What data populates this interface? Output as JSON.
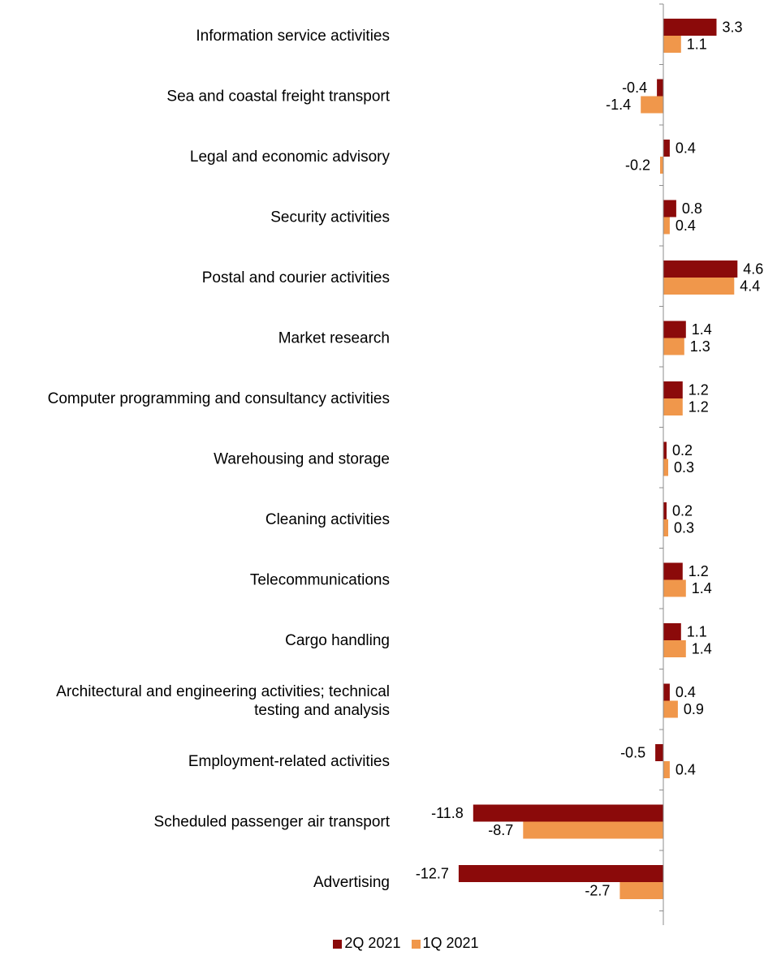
{
  "chart_data": {
    "type": "bar",
    "orientation": "horizontal",
    "categories": [
      "Information service activities",
      "Sea and coastal freight transport",
      "Legal and economic advisory",
      "Security activities",
      "Postal and courier activities",
      "Market research",
      "Computer programming and consultancy activities",
      "Warehousing and storage",
      "Cleaning activities",
      "Telecommunications",
      "Cargo handling",
      [
        "Architectural and engineering activities; technical",
        "testing and analysis"
      ],
      "Employment-related activities",
      "Scheduled passenger air transport",
      "Advertising"
    ],
    "series": [
      {
        "name": "2Q 2021",
        "color": "#8B0A0A",
        "values": [
          3.3,
          -0.4,
          0.4,
          0.8,
          4.6,
          1.4,
          1.2,
          0.2,
          0.2,
          1.2,
          1.1,
          0.4,
          -0.5,
          -11.8,
          -12.7
        ],
        "labels": [
          "3.3",
          "-0.4",
          "0.4",
          "0.8",
          "4.6",
          "1.4",
          "1.2",
          "0.2",
          "0.2",
          "1.2",
          "1.1",
          "0.4",
          "-0.5",
          "-11.8",
          "-12.7"
        ]
      },
      {
        "name": "1Q 2021",
        "color": "#F0974B",
        "values": [
          1.1,
          -1.4,
          -0.2,
          0.4,
          4.4,
          1.3,
          1.2,
          0.3,
          0.3,
          1.4,
          1.4,
          0.9,
          0.4,
          -8.7,
          -2.7
        ],
        "labels": [
          "1.1",
          "-1.4",
          "-0.2",
          "0.4",
          "4.4",
          "1.3",
          "1.2",
          "0.3",
          "0.3",
          "1.4",
          "1.4",
          "0.9",
          "0.4",
          "-8.7",
          "-2.7"
        ]
      }
    ],
    "xlim": [
      -13,
      7
    ],
    "legend_position": "bottom",
    "grid": false
  }
}
